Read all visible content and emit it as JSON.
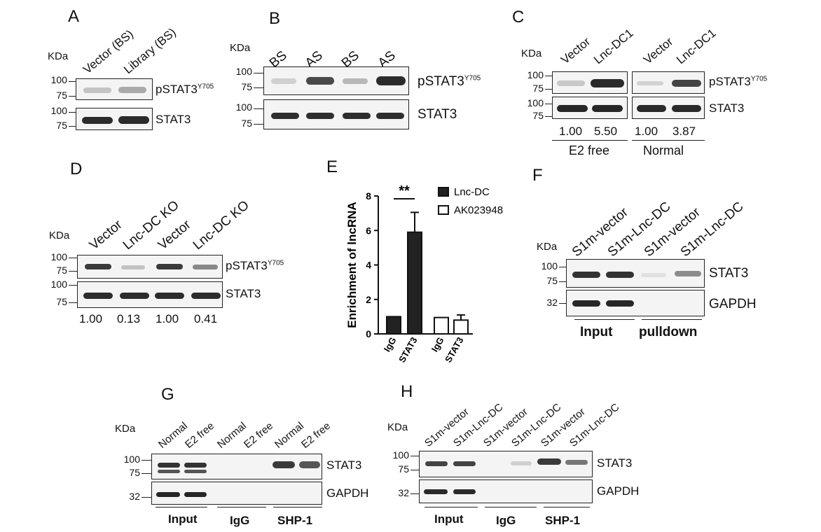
{
  "panels": {
    "A": {
      "letter": "A",
      "kda": "KDa",
      "lanes": [
        "Vector (BS)",
        "Library (BS)"
      ],
      "mw_top": [
        "100",
        "75"
      ],
      "mw_bottom": [
        "100",
        "75"
      ],
      "row1": "pSTAT3",
      "row1_sup": "Y705",
      "row2": "STAT3"
    },
    "B": {
      "letter": "B",
      "kda": "KDa",
      "lanes": [
        "BS",
        "AS",
        "BS",
        "AS"
      ],
      "mw_top": [
        "100",
        "75"
      ],
      "mw_bottom": [
        "100",
        "75"
      ],
      "row1": "pSTAT3",
      "row1_sup": "Y705",
      "row2": "STAT3"
    },
    "C": {
      "letter": "C",
      "kda": "KDa",
      "lanes": [
        "Vector",
        "Lnc-DC1",
        "Vector",
        "Lnc-DC1"
      ],
      "mw_top": [
        "100",
        "75"
      ],
      "mw_bottom": [
        "100",
        "75"
      ],
      "row1": "pSTAT3",
      "row1_sup": "Y705",
      "row2": "STAT3",
      "quant": [
        "1.00",
        "5.50",
        "1.00",
        "3.87"
      ],
      "groups": [
        "E2 free",
        "Normal"
      ]
    },
    "D": {
      "letter": "D",
      "kda": "KDa",
      "lanes": [
        "Vector",
        "Lnc-DC KO",
        "Vector",
        "Lnc-DC KO"
      ],
      "mw_top": [
        "100",
        "75"
      ],
      "mw_bottom": [
        "100",
        "75"
      ],
      "row1": "pSTAT3",
      "row1_sup": "Y705",
      "row2": "STAT3",
      "quant": [
        "1.00",
        "0.13",
        "1.00",
        "0.41"
      ]
    },
    "E": {
      "letter": "E"
    },
    "F": {
      "letter": "F",
      "kda": "KDa",
      "lanes": [
        "S1m-vector",
        "S1m-Lnc-DC",
        "S1m-vector",
        "S1m-Lnc-DC"
      ],
      "mw_top": [
        "100",
        "75"
      ],
      "mw_bottom": [
        "32"
      ],
      "row1": "STAT3",
      "row2": "GAPDH",
      "groups": [
        "Input",
        "pulldown"
      ]
    },
    "G": {
      "letter": "G",
      "kda": "KDa",
      "lanes": [
        "Normal",
        "E2 free",
        "Normal",
        "E2 free",
        "Normal",
        "E2 free"
      ],
      "mw_top": [
        "100",
        "75"
      ],
      "mw_bottom": [
        "32"
      ],
      "row1": "STAT3",
      "row2": "GAPDH",
      "groups": [
        "Input",
        "IgG",
        "SHP-1"
      ]
    },
    "H": {
      "letter": "H",
      "kda": "KDa",
      "lanes": [
        "S1m-vector",
        "S1m-Lnc-DC",
        "S1m-vector",
        "S1m-Lnc-DC",
        "S1m-vector",
        "S1m-Lnc-DC"
      ],
      "mw_top": [
        "100",
        "75"
      ],
      "mw_bottom": [
        "32"
      ],
      "row1": "STAT3",
      "row2": "GAPDH",
      "groups": [
        "Input",
        "IgG",
        "SHP-1"
      ]
    }
  },
  "chart_data": {
    "type": "bar",
    "categories": [
      "IgG",
      "STAT3",
      "IgG",
      "STAT3"
    ],
    "series": [
      {
        "name": "Lnc-DC",
        "values": [
          1.0,
          5.9,
          null,
          null
        ],
        "errors": [
          0,
          1.15,
          null,
          null
        ],
        "fill": "#222222"
      },
      {
        "name": "AK023948",
        "values": [
          null,
          null,
          0.95,
          0.8
        ],
        "errors": [
          null,
          null,
          0,
          0.3
        ],
        "fill": "#ffffff"
      }
    ],
    "ylabel": "Enrichment of lncRNA",
    "ylim": [
      0,
      8
    ],
    "yticks": [
      "0",
      "2",
      "4",
      "6",
      "8"
    ],
    "significance": "**",
    "legend": "top-right"
  },
  "colors": {
    "band_dark": "#1e1e1e",
    "band_mid": "#555555",
    "band_light": "#bdbdbd",
    "membrane": "#f4f4f4"
  }
}
